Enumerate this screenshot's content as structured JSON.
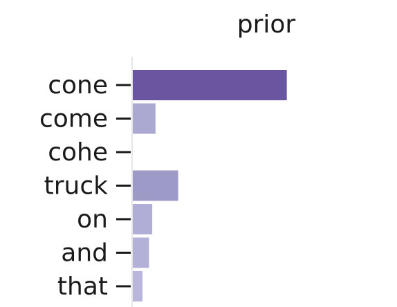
{
  "chart_data": {
    "type": "bar",
    "orientation": "horizontal",
    "title": "prior",
    "categories": [
      "cone",
      "come",
      "cohe",
      "truck",
      "on",
      "and",
      "that"
    ],
    "values": [
      0.95,
      0.14,
      0.0,
      0.28,
      0.12,
      0.1,
      0.06
    ],
    "xlim": [
      0,
      1.6
    ],
    "colors": [
      "#6a55a0",
      "#aba9d1",
      "#bcbddc",
      "#9e9ac8",
      "#b0add6",
      "#b3b1d8",
      "#b8b6da"
    ],
    "grid": false,
    "legend": "none"
  }
}
